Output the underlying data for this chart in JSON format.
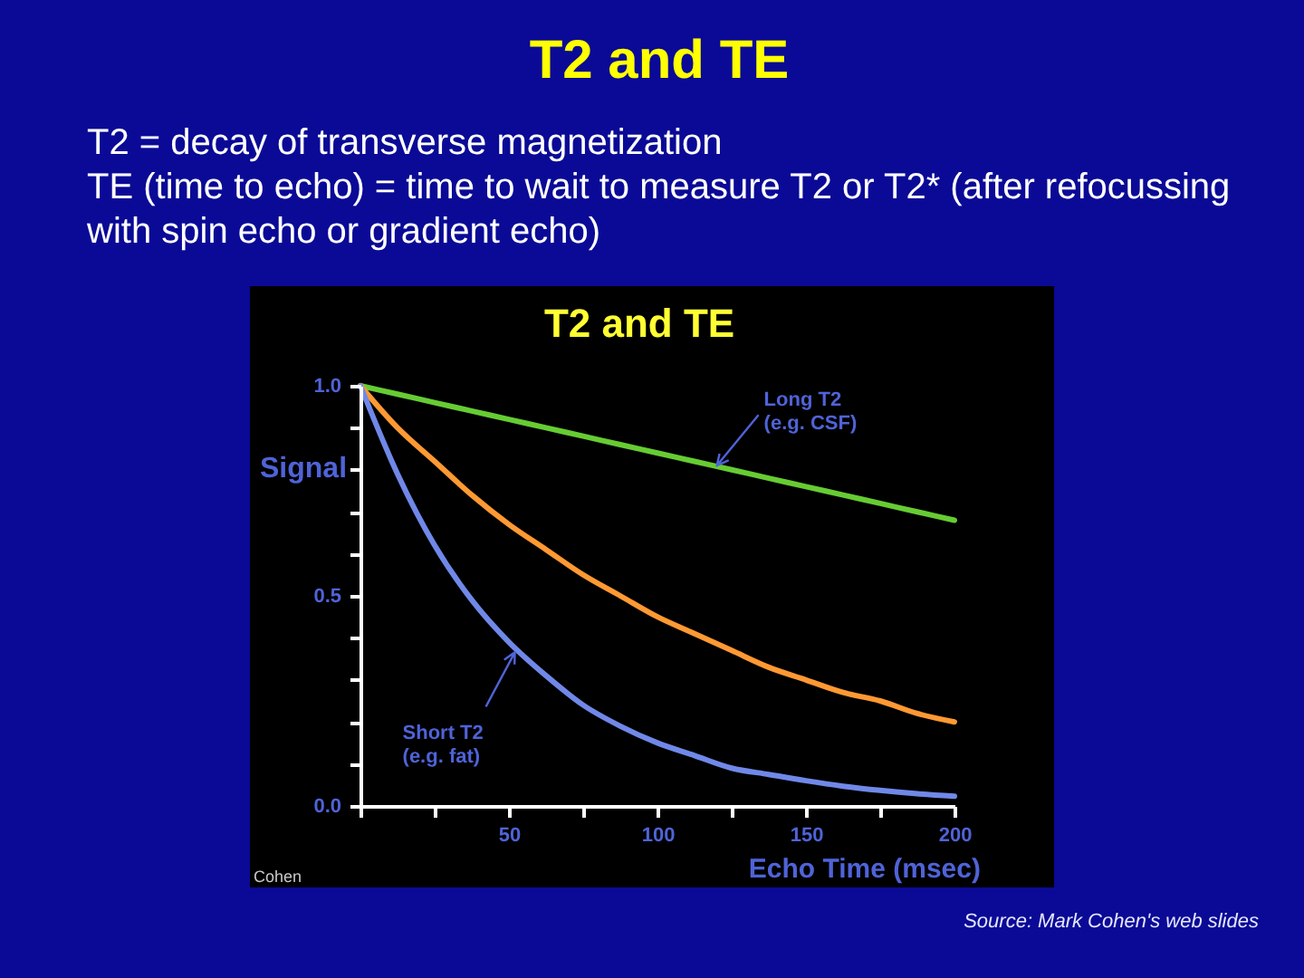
{
  "chart_data": {
    "type": "line",
    "title": "T2 and TE",
    "subtitle": "T2 = decay of transverse magnetization\nTE (time to echo) = time to wait to measure T2 or T2* (after refocussing\nwith spin echo or gradient echo)",
    "xlabel": "Echo Time (msec)",
    "ylabel": "Signal",
    "xlim": [
      0,
      200
    ],
    "ylim": [
      0,
      1
    ],
    "xticks": [
      {
        "value": 0,
        "label": null
      },
      {
        "value": 25,
        "label": null
      },
      50,
      {
        "value": 75,
        "label": null
      },
      100,
      {
        "value": 125,
        "label": null
      },
      150,
      {
        "value": 175,
        "label": null
      },
      200
    ],
    "yticks": [
      {
        "value": 0,
        "label": "0.0"
      },
      {
        "value": 0.1,
        "label": null
      },
      {
        "value": 0.2,
        "label": null
      },
      {
        "value": 0.3,
        "label": null
      },
      {
        "value": 0.4,
        "label": null
      },
      0.5,
      {
        "value": 0.6,
        "label": null
      },
      {
        "value": 0.7,
        "label": null
      },
      {
        "value": 0.8,
        "label": null
      },
      {
        "value": 0.9,
        "label": null
      },
      {
        "value": 1,
        "label": "1.0"
      }
    ],
    "grid": false,
    "legend": false,
    "marker": "none",
    "line_style": "solid",
    "x": [
      0,
      12.5,
      25,
      37.5,
      50,
      62.5,
      75,
      87.5,
      100,
      112.5,
      125,
      137.5,
      150,
      162.5,
      175,
      187.5,
      200
    ],
    "series": [
      {
        "color": "#66cc33",
        "values": [
          1.0,
          0.98,
          0.96,
          0.94,
          0.92,
          0.9,
          0.88,
          0.86,
          0.84,
          0.82,
          0.8,
          0.78,
          0.76,
          0.74,
          0.72,
          0.7,
          0.68
        ]
      },
      {
        "color": "#ff9933",
        "values": [
          1.0,
          0.9,
          0.82,
          0.74,
          0.67,
          0.61,
          0.55,
          0.5,
          0.45,
          0.41,
          0.37,
          0.33,
          0.3,
          0.27,
          0.25,
          0.22,
          0.2
        ]
      },
      {
        "color": "#7088e8",
        "values": [
          1.0,
          0.79,
          0.62,
          0.49,
          0.39,
          0.31,
          0.24,
          0.19,
          0.15,
          0.12,
          0.09,
          0.075,
          0.06,
          0.047,
          0.037,
          0.029,
          0.023
        ]
      }
    ],
    "annotations": [
      {
        "text": "Long T2\n(e.g. CSF)",
        "x": 120,
        "y": 0.81
      },
      {
        "text": "Short T2\n(e.g. fat)",
        "x": 52,
        "y": 0.37
      },
      "T2 and TE",
      "Cohen",
      "Source: Mark Cohen's web slides"
    ]
  }
}
